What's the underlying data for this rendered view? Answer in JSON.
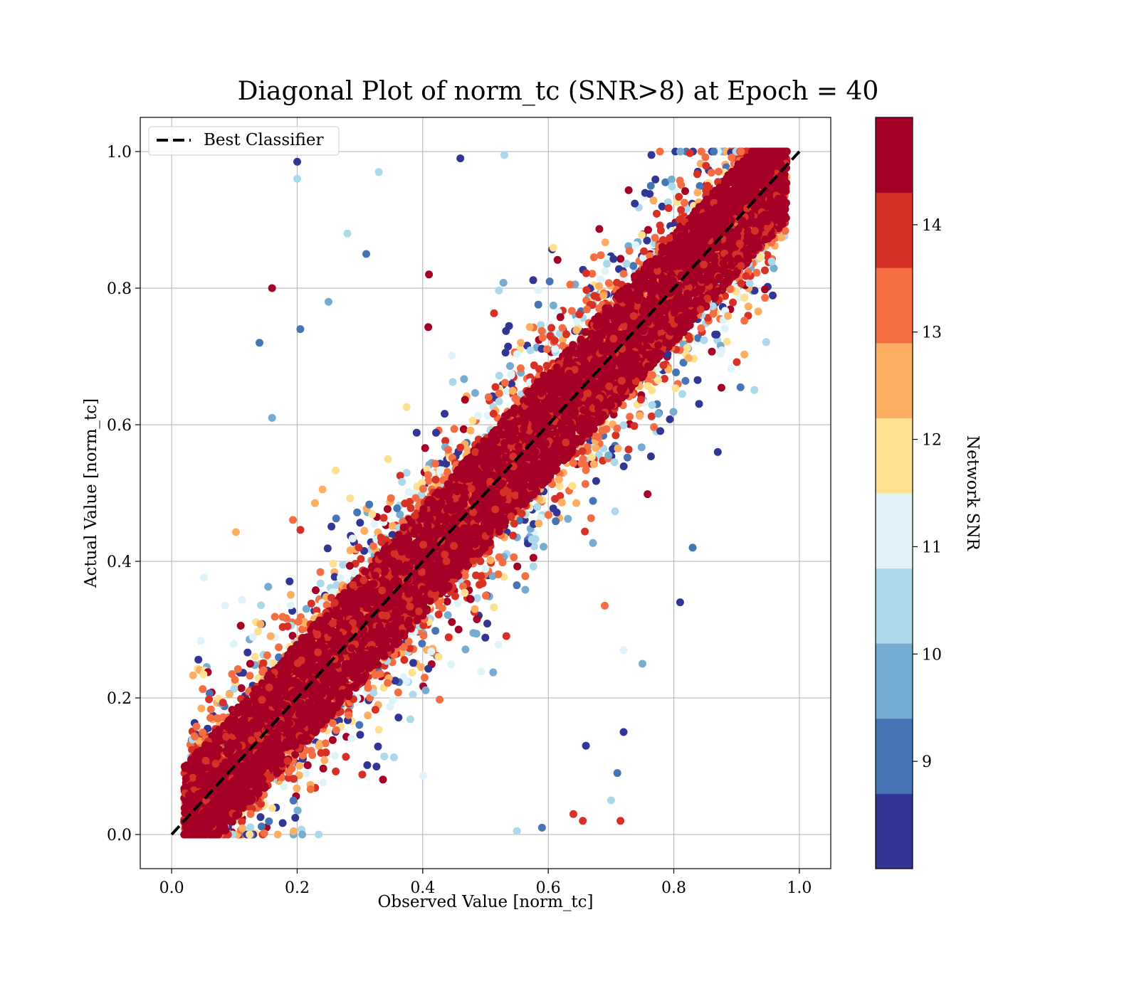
{
  "chart_data": {
    "type": "scatter",
    "title": "Diagonal Plot of norm_tc (SNR>8) at Epoch = 40",
    "xlabel": "Observed Value [norm_tc]",
    "ylabel": "Actual Value [norm_tc]",
    "xlim": [
      -0.05,
      1.05
    ],
    "ylim": [
      -0.05,
      1.05
    ],
    "xticks": [
      "0.0",
      "0.2",
      "0.4",
      "0.6",
      "0.8",
      "1.0"
    ],
    "yticks": [
      "0.0",
      "0.2",
      "0.4",
      "0.6",
      "0.8",
      "1.0"
    ],
    "grid": true,
    "legend": {
      "placement": "upper-left",
      "entries": [
        "Best Classifier"
      ]
    },
    "reference_line": {
      "name": "Best Classifier",
      "x": [
        0.0,
        1.0
      ],
      "y": [
        0.0,
        1.0
      ],
      "style": "dashed",
      "color": "#000000"
    },
    "colorbar": {
      "label": "Network SNR",
      "range": [
        8,
        15
      ],
      "ticks": [
        "9",
        "10",
        "11",
        "12",
        "13",
        "14"
      ],
      "colors": [
        "#313695",
        "#4575b4",
        "#74add1",
        "#abd9e9",
        "#e0f3f8",
        "#fee090",
        "#fdae61",
        "#f46d43",
        "#d73027",
        "#a50026"
      ]
    },
    "outliers": [
      {
        "x": 0.2,
        "y": 0.985,
        "snr": 8.3
      },
      {
        "x": 0.2,
        "y": 0.96,
        "snr": 10.2
      },
      {
        "x": 0.16,
        "y": 0.8,
        "snr": 14.4
      },
      {
        "x": 0.14,
        "y": 0.72,
        "snr": 9.0
      },
      {
        "x": 0.205,
        "y": 0.74,
        "snr": 9.0
      },
      {
        "x": 0.25,
        "y": 0.78,
        "snr": 9.5
      },
      {
        "x": 0.41,
        "y": 0.82,
        "snr": 14.3
      },
      {
        "x": 0.16,
        "y": 0.61,
        "snr": 10.0
      },
      {
        "x": 0.31,
        "y": 0.85,
        "snr": 9.1
      },
      {
        "x": 0.28,
        "y": 0.88,
        "snr": 10.3
      },
      {
        "x": 0.87,
        "y": 0.56,
        "snr": 8.4
      },
      {
        "x": 0.83,
        "y": 0.42,
        "snr": 9.0
      },
      {
        "x": 0.81,
        "y": 0.34,
        "snr": 8.6
      },
      {
        "x": 0.75,
        "y": 0.25,
        "snr": 9.5
      },
      {
        "x": 0.72,
        "y": 0.15,
        "snr": 8.5
      },
      {
        "x": 0.71,
        "y": 0.09,
        "snr": 9.3
      },
      {
        "x": 0.66,
        "y": 0.13,
        "snr": 8.7
      },
      {
        "x": 0.7,
        "y": 0.05,
        "snr": 10.4
      },
      {
        "x": 0.715,
        "y": 0.02,
        "snr": 14.0
      },
      {
        "x": 0.655,
        "y": 0.02,
        "snr": 14.2
      },
      {
        "x": 0.64,
        "y": 0.03,
        "snr": 13.7
      },
      {
        "x": 0.55,
        "y": 0.005,
        "snr": 10.6
      },
      {
        "x": 0.59,
        "y": 0.01,
        "snr": 8.9
      },
      {
        "x": 0.69,
        "y": 0.335,
        "snr": 13.6
      },
      {
        "x": 0.72,
        "y": 0.27,
        "snr": 11.3
      },
      {
        "x": 0.33,
        "y": 0.97,
        "snr": 10.5
      },
      {
        "x": 0.46,
        "y": 0.99,
        "snr": 8.4
      },
      {
        "x": 0.53,
        "y": 0.995,
        "snr": 10.6
      }
    ]
  }
}
